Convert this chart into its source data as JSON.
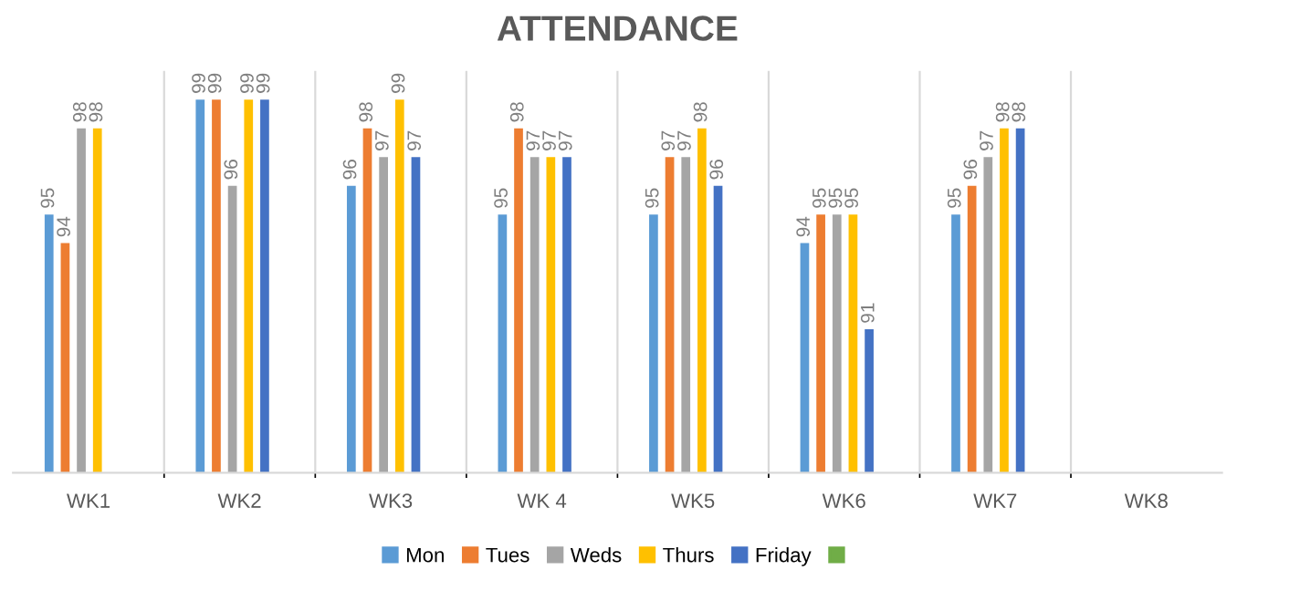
{
  "chart_data": {
    "type": "bar",
    "title": "ATTENDANCE",
    "categories": [
      "WK1",
      "WK2",
      "WK3",
      "WK 4",
      "WK5",
      "WK6",
      "WK7",
      "WK8"
    ],
    "series": [
      {
        "name": "Mon",
        "color": "#5b9bd5",
        "values": [
          95,
          99,
          96,
          95,
          95,
          94,
          95,
          null
        ]
      },
      {
        "name": "Tues",
        "color": "#ed7d31",
        "values": [
          94,
          99,
          98,
          98,
          97,
          95,
          96,
          null
        ]
      },
      {
        "name": "Weds",
        "color": "#a5a5a5",
        "values": [
          98,
          96,
          97,
          97,
          97,
          95,
          97,
          null
        ]
      },
      {
        "name": "Thurs",
        "color": "#ffc000",
        "values": [
          98,
          99,
          99,
          97,
          98,
          95,
          98,
          null
        ]
      },
      {
        "name": "Friday",
        "color": "#4472c4",
        "values": [
          null,
          99,
          97,
          97,
          96,
          91,
          98,
          null
        ]
      },
      {
        "color": "#70ad47",
        "values": [
          null,
          null,
          null,
          null,
          null,
          null,
          null,
          null
        ]
      }
    ],
    "ylim": [
      86,
      100
    ],
    "tick_labels": "x",
    "data_labels": true,
    "grid": "x",
    "legend": "bottom"
  }
}
